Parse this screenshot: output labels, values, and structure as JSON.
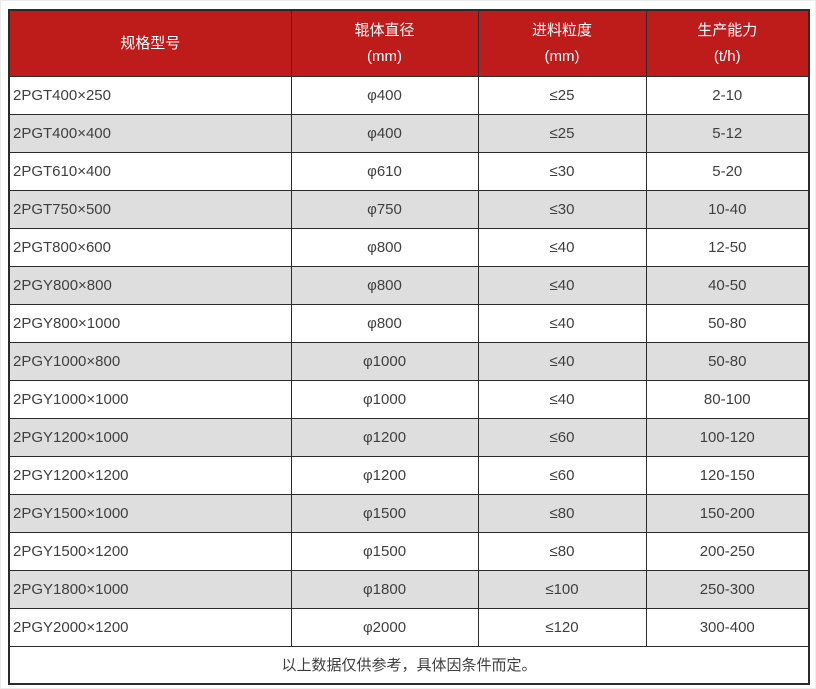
{
  "chart_data": {
    "type": "table",
    "columns": [
      {
        "title": "规格型号",
        "unit": ""
      },
      {
        "title": "辊体直径",
        "unit": "(mm)"
      },
      {
        "title": "进料粒度",
        "unit": "(mm)"
      },
      {
        "title": "生产能力",
        "unit": "(t/h)"
      }
    ],
    "rows": [
      [
        "2PGT400×250",
        "φ400",
        "≤25",
        "2-10"
      ],
      [
        "2PGT400×400",
        "φ400",
        "≤25",
        "5-12"
      ],
      [
        "2PGT610×400",
        "φ610",
        "≤30",
        "5-20"
      ],
      [
        "2PGT750×500",
        "φ750",
        "≤30",
        "10-40"
      ],
      [
        "2PGT800×600",
        "φ800",
        "≤40",
        "12-50"
      ],
      [
        "2PGY800×800",
        "φ800",
        "≤40",
        "40-50"
      ],
      [
        "2PGY800×1000",
        "φ800",
        "≤40",
        "50-80"
      ],
      [
        "2PGY1000×800",
        "φ1000",
        "≤40",
        "50-80"
      ],
      [
        "2PGY1000×1000",
        "φ1000",
        "≤40",
        "80-100"
      ],
      [
        "2PGY1200×1000",
        "φ1200",
        "≤60",
        "100-120"
      ],
      [
        "2PGY1200×1200",
        "φ1200",
        "≤60",
        "120-150"
      ],
      [
        "2PGY1500×1000",
        "φ1500",
        "≤80",
        "150-200"
      ],
      [
        "2PGY1500×1200",
        "φ1500",
        "≤80",
        "200-250"
      ],
      [
        "2PGY1800×1000",
        "φ1800",
        "≤100",
        "250-300"
      ],
      [
        "2PGY2000×1200",
        "φ2000",
        "≤120",
        "300-400"
      ]
    ],
    "footnote": "以上数据仅供参考，具体因条件而定。",
    "grid": true,
    "legend_position": "none"
  },
  "colors": {
    "header_bg": "#BE1B1B",
    "header_text": "#FFFFFF",
    "alt_row_bg": "#DEDEDE",
    "border": "#2B2B2B",
    "cell_text": "#3F3F3F"
  }
}
